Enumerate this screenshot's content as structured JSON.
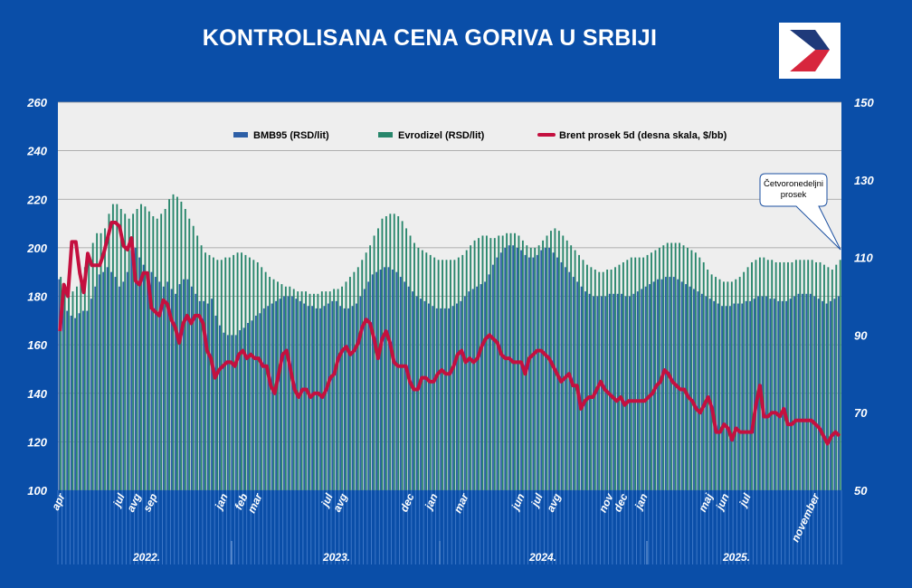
{
  "title": "KONTROLISANA CENA GORIVA U SRBIJI",
  "logo": {
    "colors": [
      "#1f3a7a",
      "#d7263d"
    ]
  },
  "callout": {
    "lines": [
      "Četvoronedeljni",
      "prosek"
    ]
  },
  "chart_data": {
    "type": "bar",
    "title": "KONTROLISANA CENA GORIVA U SRBIJI",
    "series": [
      {
        "name": "BMB95 (RSD/lit)",
        "type": "bar",
        "axis": "left",
        "color": "#2d5fa6",
        "values": [
          187,
          177,
          174,
          172,
          171,
          173,
          174,
          174,
          179,
          184,
          189,
          190,
          192,
          190,
          188,
          184,
          186,
          190,
          199,
          200,
          196,
          193,
          190,
          190,
          188,
          186,
          184,
          186,
          183,
          181,
          185,
          187,
          187,
          184,
          181,
          178,
          178,
          177,
          179,
          172,
          168,
          165,
          164,
          164,
          164,
          166,
          167,
          169,
          170,
          172,
          173,
          175,
          176,
          177,
          178,
          179,
          180,
          180,
          180,
          179,
          178,
          177,
          176,
          176,
          175,
          175,
          176,
          177,
          178,
          178,
          176,
          175,
          175,
          176,
          177,
          180,
          183,
          186,
          189,
          190,
          191,
          192,
          192,
          191,
          190,
          188,
          186,
          184,
          182,
          180,
          179,
          178,
          177,
          176,
          175,
          175,
          175,
          175,
          176,
          177,
          178,
          180,
          182,
          183,
          184,
          185,
          186,
          189,
          193,
          196,
          198,
          200,
          201,
          201,
          200,
          199,
          197,
          196,
          196,
          197,
          199,
          200,
          200,
          198,
          196,
          194,
          192,
          190,
          188,
          186,
          184,
          182,
          181,
          180,
          180,
          180,
          180,
          181,
          181,
          181,
          181,
          180,
          180,
          181,
          182,
          183,
          184,
          185,
          186,
          187,
          187,
          188,
          188,
          188,
          187,
          186,
          185,
          184,
          183,
          182,
          181,
          180,
          179,
          178,
          177,
          176,
          176,
          176,
          177,
          177,
          177,
          178,
          178,
          179,
          180,
          180,
          180,
          179,
          179,
          178,
          178,
          178,
          179,
          180,
          181,
          181,
          181,
          181,
          180,
          179,
          178,
          177,
          178,
          179,
          180
        ]
      },
      {
        "name": "Evrodizel (RSD/lit)",
        "type": "bar",
        "axis": "left",
        "color": "#27866b",
        "values": [
          188,
          185,
          182,
          182,
          184,
          187,
          192,
          196,
          202,
          206,
          206,
          208,
          214,
          218,
          218,
          216,
          214,
          212,
          214,
          216,
          218,
          217,
          215,
          213,
          212,
          214,
          216,
          220,
          222,
          221,
          219,
          216,
          212,
          209,
          205,
          201,
          198,
          197,
          196,
          195,
          195,
          196,
          196,
          197,
          198,
          198,
          197,
          196,
          195,
          194,
          192,
          190,
          188,
          187,
          186,
          185,
          184,
          184,
          183,
          182,
          182,
          182,
          181,
          181,
          181,
          182,
          182,
          182,
          183,
          183,
          184,
          186,
          188,
          190,
          192,
          195,
          198,
          201,
          205,
          208,
          212,
          213,
          214,
          214,
          213,
          211,
          208,
          205,
          202,
          200,
          199,
          198,
          197,
          196,
          195,
          195,
          195,
          195,
          195,
          196,
          197,
          199,
          201,
          203,
          204,
          205,
          205,
          204,
          204,
          205,
          205,
          206,
          206,
          206,
          205,
          203,
          201,
          200,
          200,
          201,
          203,
          205,
          207,
          208,
          207,
          205,
          203,
          201,
          199,
          197,
          195,
          193,
          192,
          191,
          190,
          190,
          191,
          191,
          192,
          193,
          194,
          195,
          196,
          196,
          196,
          196,
          197,
          198,
          199,
          200,
          201,
          202,
          202,
          202,
          202,
          201,
          200,
          199,
          198,
          196,
          194,
          191,
          189,
          188,
          187,
          186,
          186,
          186,
          187,
          188,
          190,
          192,
          194,
          195,
          196,
          196,
          195,
          195,
          194,
          194,
          194,
          194,
          194,
          195,
          195,
          195,
          195,
          195,
          194,
          194,
          193,
          192,
          191,
          193,
          195,
          198
        ]
      },
      {
        "name": "Brent prosek  5d (desna skala, $/bb)",
        "type": "line",
        "axis": "right",
        "color": "#c4103f",
        "values": [
          91,
          103,
          100,
          114,
          114,
          106,
          101,
          111,
          108,
          108,
          108,
          111,
          115,
          119,
          119,
          118,
          113,
          112,
          115,
          104,
          103,
          106,
          106,
          97,
          96,
          95,
          99,
          98,
          94,
          92,
          88,
          93,
          95,
          93,
          95,
          95,
          93,
          86,
          84,
          79,
          81,
          82,
          83,
          83,
          82,
          85,
          86,
          84,
          85,
          84,
          84,
          82,
          82,
          77,
          75,
          80,
          85,
          86,
          81,
          76,
          74,
          76,
          76,
          74,
          75,
          75,
          74,
          76,
          79,
          80,
          84,
          86,
          87,
          85,
          86,
          88,
          92,
          94,
          93,
          89,
          84,
          89,
          91,
          88,
          83,
          82,
          82,
          82,
          78,
          76,
          76,
          79,
          79,
          78,
          78,
          80,
          81,
          80,
          80,
          82,
          85,
          86,
          83,
          84,
          83,
          84,
          87,
          89,
          90,
          89,
          88,
          85,
          84,
          84,
          83,
          83,
          83,
          80,
          84,
          85,
          86,
          86,
          85,
          84,
          82,
          80,
          78,
          79,
          80,
          77,
          77,
          71,
          73,
          74,
          74,
          76,
          78,
          76,
          75,
          74,
          73,
          74,
          72,
          73,
          73,
          73,
          73,
          73,
          74,
          75,
          77,
          78,
          81,
          80,
          78,
          77,
          76,
          76,
          74,
          73,
          71,
          70,
          72,
          74,
          71,
          65,
          65,
          67,
          66,
          63,
          66,
          65,
          65,
          65,
          65,
          72,
          77,
          69,
          69,
          70,
          70,
          69,
          71,
          67,
          67,
          68,
          68,
          68,
          68,
          68,
          67,
          66,
          64,
          62,
          64,
          65,
          64
        ]
      }
    ],
    "categories_by_year": [
      {
        "year": "2022.",
        "months": [
          "apr",
          "jul",
          "avg",
          "sep"
        ]
      },
      {
        "year": "2023.",
        "months": [
          "jan",
          "feb",
          "mar",
          "jul",
          "avg",
          "dec"
        ]
      },
      {
        "year": "2024.",
        "months": [
          "jan",
          "mar",
          "jun",
          "jul",
          "avg",
          "nov",
          "dec"
        ]
      },
      {
        "year": "2025.",
        "months": [
          "jan",
          "maj",
          "jun",
          "jul",
          "november"
        ]
      }
    ],
    "left_axis": {
      "ylim": [
        100,
        260
      ],
      "ticks": [
        100,
        120,
        140,
        160,
        180,
        200,
        220,
        240,
        260
      ]
    },
    "right_axis": {
      "ylim": [
        50,
        150
      ],
      "ticks": [
        50,
        70,
        90,
        110,
        130,
        150
      ]
    },
    "legend_position": "top",
    "grid": true
  }
}
